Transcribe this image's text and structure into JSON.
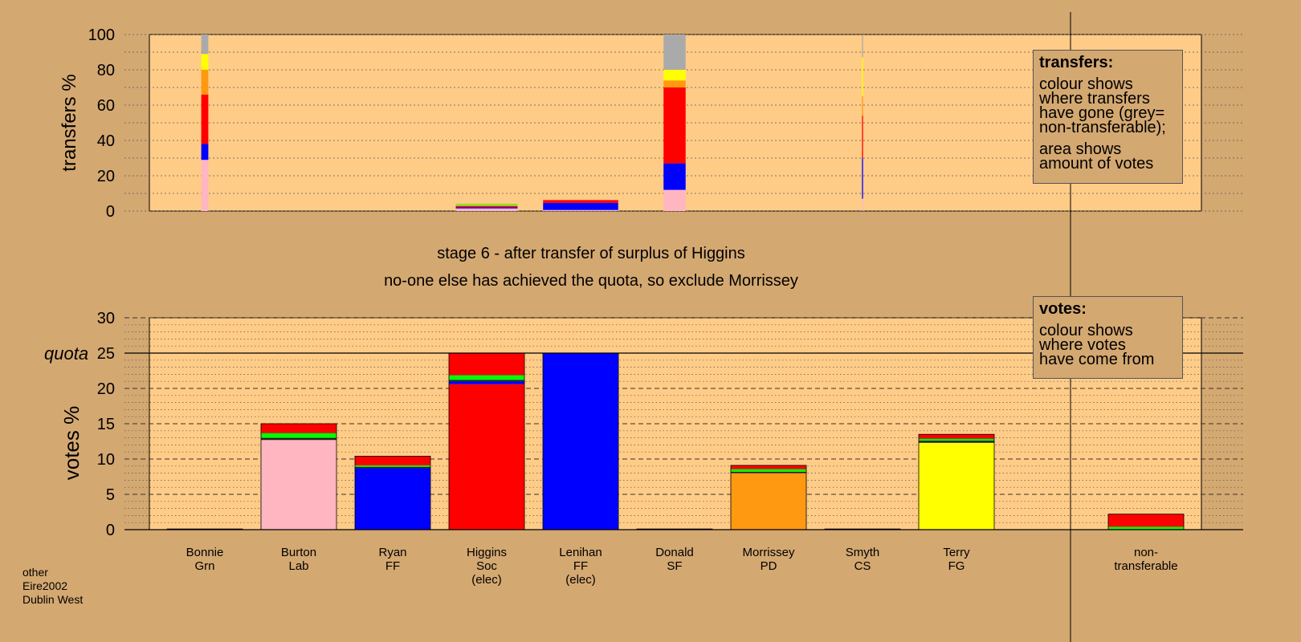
{
  "chart_data": {
    "type": "bar",
    "stage_title": "stage 6 - after transfer of surplus of Higgins",
    "stage_subtitle": "no-one else has achieved the quota, so exclude Morrissey",
    "categories": [
      {
        "name": "Bonnie",
        "party": "Grn",
        "extra": ""
      },
      {
        "name": "Burton",
        "party": "Lab",
        "extra": ""
      },
      {
        "name": "Ryan",
        "party": "FF",
        "extra": ""
      },
      {
        "name": "Higgins",
        "party": "Soc",
        "extra": "(elec)"
      },
      {
        "name": "Lenihan",
        "party": "FF",
        "extra": "(elec)"
      },
      {
        "name": "Donald",
        "party": "SF",
        "extra": ""
      },
      {
        "name": "Morrissey",
        "party": "PD",
        "extra": ""
      },
      {
        "name": "Smyth",
        "party": "CS",
        "extra": ""
      },
      {
        "name": "Terry",
        "party": "FG",
        "extra": ""
      }
    ],
    "nontransferable_label": [
      "non-",
      "transferable"
    ],
    "colors": {
      "Grn": "#00ff00",
      "Lab": "#ffb6c1",
      "FF": "#0000ff",
      "Soc": "#ff0000",
      "SF": "#00aa00",
      "PD": "#ff9911",
      "CS": "#222222",
      "FG": "#ffff00",
      "nontransferable": "#aaaaaa",
      "plot_bg": "#ffcc88"
    },
    "transfers_chart": {
      "ylabel": "transfers %",
      "ylim": [
        0,
        100
      ],
      "yticks": [
        0,
        20,
        40,
        60,
        80,
        100
      ],
      "bars": [
        {
          "index": 0,
          "width": 0.08,
          "segments": [
            [
              "Lab",
              29
            ],
            [
              "FF",
              9
            ],
            [
              "Soc",
              28
            ],
            [
              "PD",
              14
            ],
            [
              "FG",
              9
            ],
            [
              "nontransferable",
              11
            ]
          ]
        },
        {
          "index": 3,
          "width": 0.7,
          "segments": [
            [
              "Lab",
              1.5
            ],
            [
              "FF",
              0.7
            ],
            [
              "Soc",
              0.8
            ],
            [
              "FG",
              0.5
            ],
            [
              "Grn",
              0.5
            ]
          ]
        },
        {
          "index": 4,
          "width": 0.85,
          "segments": [
            [
              "Lab",
              0.6
            ],
            [
              "FF",
              4
            ],
            [
              "Soc",
              1.6
            ]
          ]
        },
        {
          "index": 5,
          "width": 0.25,
          "segments": [
            [
              "Lab",
              12
            ],
            [
              "FF",
              15
            ],
            [
              "Soc",
              43
            ],
            [
              "PD",
              4
            ],
            [
              "FG",
              6
            ],
            [
              "nontransferable",
              20
            ]
          ]
        },
        {
          "index": 7,
          "width": 0.012,
          "segments": [
            [
              "Lab",
              7
            ],
            [
              "FF",
              23
            ],
            [
              "Soc",
              24
            ],
            [
              "PD",
              11
            ],
            [
              "FG",
              22
            ],
            [
              "nontransferable",
              13
            ]
          ]
        }
      ],
      "legend": {
        "title": "transfers:",
        "lines": [
          "colour shows",
          "where transfers",
          "have gone (grey=",
          "non-transferable);"
        ],
        "lines2": [
          "area shows",
          "amount of votes"
        ]
      }
    },
    "votes_chart": {
      "ylabel": "votes %",
      "ylim": [
        0,
        30
      ],
      "yticks": [
        0,
        5,
        10,
        15,
        20,
        25,
        30
      ],
      "quota": 25,
      "quota_label": "quota",
      "bars": [
        {
          "index": 0,
          "segments": [
            [
              "Grn",
              0.1
            ]
          ]
        },
        {
          "index": 1,
          "segments": [
            [
              "Lab",
              12.7
            ],
            [
              "CS",
              0.3
            ],
            [
              "Grn",
              0.6
            ],
            [
              "SF",
              0.1
            ],
            [
              "Soc",
              1.3
            ]
          ]
        },
        {
          "index": 2,
          "segments": [
            [
              "FF",
              8.7
            ],
            [
              "CS",
              0.2
            ],
            [
              "Grn",
              0.2
            ],
            [
              "Soc",
              1.3
            ]
          ]
        },
        {
          "index": 3,
          "segments": [
            [
              "Soc",
              20.6
            ],
            [
              "FF",
              0.4
            ],
            [
              "CS",
              0.2
            ],
            [
              "Grn",
              0.6
            ],
            [
              "SF",
              0.1
            ],
            [
              "Soc",
              3.1
            ]
          ]
        },
        {
          "index": 4,
          "segments": [
            [
              "FF",
              25
            ]
          ]
        },
        {
          "index": 5,
          "segments": [
            [
              "SF",
              0.1
            ]
          ]
        },
        {
          "index": 6,
          "segments": [
            [
              "PD",
              8
            ],
            [
              "CS",
              0.2
            ],
            [
              "Grn",
              0.3
            ],
            [
              "SF",
              0.1
            ],
            [
              "Soc",
              0.5
            ]
          ]
        },
        {
          "index": 7,
          "segments": [
            [
              "CS",
              0.1
            ]
          ]
        },
        {
          "index": 8,
          "segments": [
            [
              "FG",
              12.3
            ],
            [
              "CS",
              0.3
            ],
            [
              "Grn",
              0.2
            ],
            [
              "SF",
              0.1
            ],
            [
              "Soc",
              0.6
            ]
          ]
        },
        {
          "index": 9,
          "segments": [
            [
              "SF",
              0.1
            ],
            [
              "Grn",
              0.3
            ],
            [
              "Soc",
              1.8
            ]
          ]
        }
      ],
      "legend": {
        "title": "votes:",
        "lines": [
          "colour shows",
          "where votes",
          "have come from"
        ]
      }
    },
    "source_lines": [
      "other",
      "Eire2002",
      "Dublin West"
    ]
  }
}
